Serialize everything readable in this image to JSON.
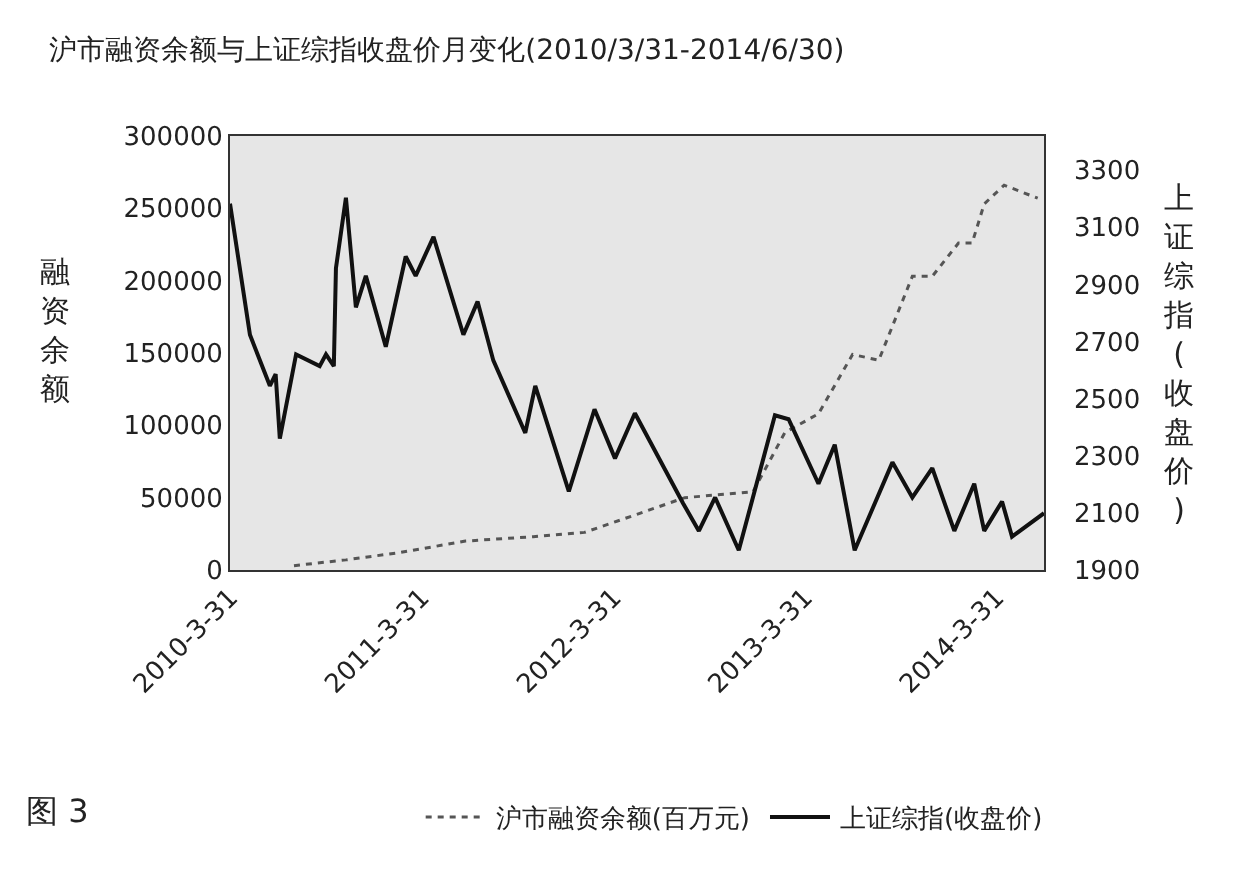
{
  "chart_data": {
    "type": "line",
    "title": "沪市融资余额与上证综指收盘价月变化(2010/3/31-2014/6/30)",
    "ylabel": "融资余额",
    "y2label": "上证综指(收盘价)",
    "xlim": [
      "2010-03-31",
      "2014-06-30"
    ],
    "xticks": [
      {
        "value": "2010-03-31",
        "label": "2010-3-31"
      },
      {
        "value": "2011-03-31",
        "label": "2011-3-31"
      },
      {
        "value": "2012-03-31",
        "label": "2012-3-31"
      },
      {
        "value": "2013-03-31",
        "label": "2013-3-31"
      },
      {
        "value": "2014-03-31",
        "label": "2014-3-31"
      }
    ],
    "ylim": [
      0,
      300000
    ],
    "yticks": [
      0,
      50000,
      100000,
      150000,
      200000,
      250000,
      300000
    ],
    "y2lim": [
      1900,
      3420
    ],
    "y2ticks": [
      1900,
      2100,
      2300,
      2500,
      2700,
      2900,
      3100,
      3300
    ],
    "grid": false,
    "legend": "bottom",
    "marker": "none",
    "annotations": [
      "图 3"
    ],
    "series": [
      {
        "name": "沪市融资余额(百万元)",
        "color": "#555555",
        "line_style": "dotted",
        "axis": "y",
        "x": [
          "2010-07-31",
          "2010-11-07",
          "2011-02-17",
          "2011-06-23",
          "2011-10-30",
          "2012-02-05",
          "2012-05-19",
          "2012-08-14",
          "2012-12-22",
          "2013-02-21",
          "2013-04-26",
          "2013-06-30",
          "2013-08-19",
          "2013-10-22",
          "2013-11-29",
          "2014-01-18",
          "2014-02-13",
          "2014-03-08",
          "2014-04-15",
          "2014-06-18"
        ],
        "values": [
          3000,
          7000,
          12000,
          20000,
          23000,
          26000,
          39000,
          50000,
          54000,
          95000,
          108000,
          149000,
          145000,
          203000,
          203000,
          226000,
          226000,
          253000,
          266000,
          257000
        ]
      },
      {
        "name": "上证综指(收盘价)",
        "color": "#111111",
        "line_style": "solid",
        "axis": "y2",
        "x": [
          "2010-03-31",
          "2010-05-08",
          "2010-06-15",
          "2010-06-26",
          "2010-07-04",
          "2010-08-04",
          "2010-09-18",
          "2010-09-30",
          "2010-10-15",
          "2010-10-19",
          "2010-11-07",
          "2010-11-26",
          "2010-12-15",
          "2011-01-22",
          "2011-03-01",
          "2011-03-20",
          "2011-04-23",
          "2011-06-19",
          "2011-07-16",
          "2011-08-15",
          "2011-10-15",
          "2011-11-03",
          "2012-01-06",
          "2012-02-24",
          "2012-04-03",
          "2012-05-11",
          "2012-08-11",
          "2012-09-10",
          "2012-10-11",
          "2012-11-25",
          "2013-02-02",
          "2013-02-28",
          "2013-04-26",
          "2013-05-27",
          "2013-07-04",
          "2013-09-14",
          "2013-10-22",
          "2013-11-29",
          "2014-01-10",
          "2014-02-17",
          "2014-03-08",
          "2014-04-11",
          "2014-04-30",
          "2014-06-30"
        ],
        "values": [
          3183,
          2724,
          2545,
          2586,
          2360,
          2655,
          2614,
          2655,
          2614,
          2957,
          3204,
          2820,
          2930,
          2682,
          2998,
          2930,
          3067,
          2724,
          2840,
          2634,
          2380,
          2545,
          2175,
          2463,
          2291,
          2449,
          2133,
          2037,
          2154,
          1969,
          2442,
          2428,
          2202,
          2339,
          1969,
          2277,
          2154,
          2257,
          2037,
          2202,
          2037,
          2140,
          2017,
          2099
        ]
      }
    ]
  }
}
